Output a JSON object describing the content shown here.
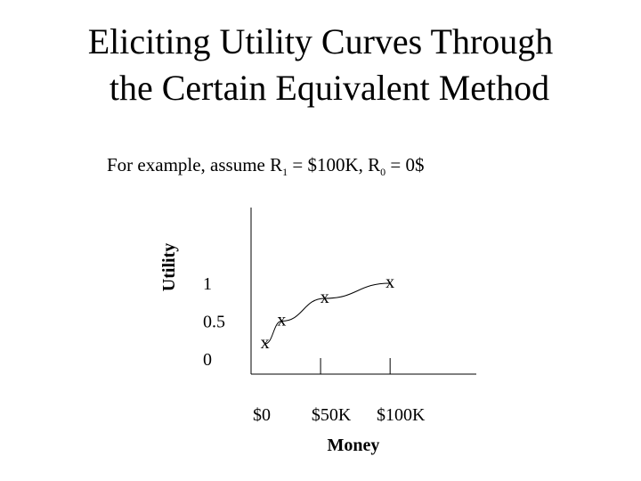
{
  "header": {
    "title_lines": [
      "Eliciting Utility Curves Through",
      "the Certain Equivalent Method"
    ],
    "subtitle_parts": [
      "For example, assume R",
      "1",
      " = $100K, R",
      "0",
      " = 0$"
    ]
  },
  "chart_data": {
    "type": "line",
    "x_label": "Money",
    "y_label": "Utility",
    "marker": "x",
    "x": [
      10000,
      22000,
      53000,
      100000
    ],
    "series": [
      {
        "color": "#000000",
        "values": [
          0.2,
          0.5,
          0.8,
          1.0
        ]
      }
    ],
    "xlim": [
      0,
      162000
    ],
    "ylim": [
      -0.2,
      2.0
    ],
    "xticks": [
      {
        "value": 0,
        "label": "$0"
      },
      {
        "value": 50000,
        "label": "$50K"
      },
      {
        "value": 100000,
        "label": "$100K"
      }
    ],
    "yticks": [
      0,
      0.5,
      1
    ]
  }
}
